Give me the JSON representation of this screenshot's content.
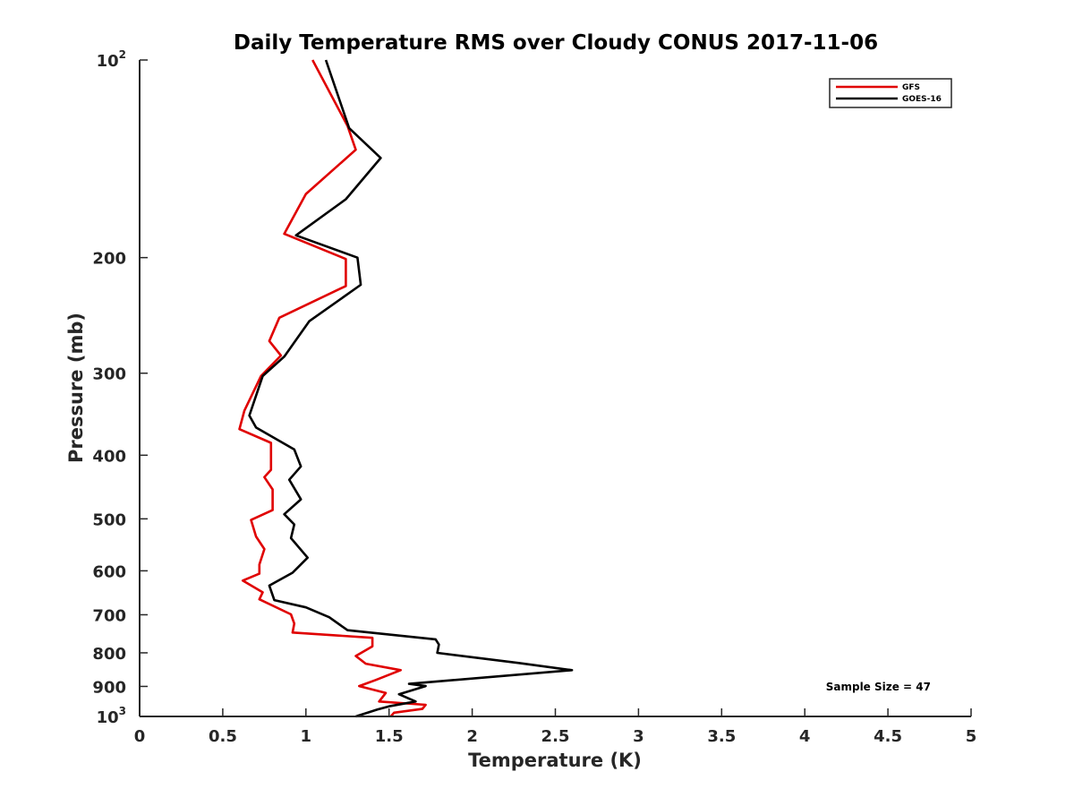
{
  "chart_data": {
    "type": "line",
    "title": "Daily Temperature RMS over Cloudy CONUS 2017-11-06",
    "xlabel": "Temperature (K)",
    "ylabel": "Pressure (mb)",
    "xlim": [
      0,
      5
    ],
    "ylim": [
      100,
      1000
    ],
    "y_scale": "log",
    "y_reversed": true,
    "grid": false,
    "legend_position": "top-right",
    "x_ticks": [
      "0",
      "0.5",
      "1",
      "1.5",
      "2",
      "2.5",
      "3",
      "3.5",
      "4",
      "4.5",
      "5"
    ],
    "y_ticks": [
      {
        "value": 100,
        "base": "10",
        "sup": "2"
      },
      {
        "value": 200,
        "base": "200",
        "sup": ""
      },
      {
        "value": 300,
        "base": "300",
        "sup": ""
      },
      {
        "value": 400,
        "base": "400",
        "sup": ""
      },
      {
        "value": 500,
        "base": "500",
        "sup": ""
      },
      {
        "value": 600,
        "base": "600",
        "sup": ""
      },
      {
        "value": 700,
        "base": "700",
        "sup": ""
      },
      {
        "value": 800,
        "base": "800",
        "sup": ""
      },
      {
        "value": 900,
        "base": "900",
        "sup": ""
      },
      {
        "value": 1000,
        "base": "10",
        "sup": "3"
      }
    ],
    "annotation": "Sample Size = 47",
    "series": [
      {
        "name": "GFS",
        "color": "#e00000",
        "points": [
          [
            1.04,
            100
          ],
          [
            1.25,
            126
          ],
          [
            1.3,
            137
          ],
          [
            1.0,
            160
          ],
          [
            0.87,
            184
          ],
          [
            1.24,
            201
          ],
          [
            1.24,
            221
          ],
          [
            0.84,
            247
          ],
          [
            0.78,
            268
          ],
          [
            0.85,
            282
          ],
          [
            0.73,
            303
          ],
          [
            0.63,
            342
          ],
          [
            0.6,
            365
          ],
          [
            0.79,
            383
          ],
          [
            0.79,
            421
          ],
          [
            0.75,
            432
          ],
          [
            0.8,
            451
          ],
          [
            0.8,
            485
          ],
          [
            0.67,
            502
          ],
          [
            0.7,
            532
          ],
          [
            0.75,
            556
          ],
          [
            0.72,
            587
          ],
          [
            0.72,
            606
          ],
          [
            0.62,
            621
          ],
          [
            0.74,
            647
          ],
          [
            0.72,
            663
          ],
          [
            0.91,
            699
          ],
          [
            0.93,
            722
          ],
          [
            0.92,
            745
          ],
          [
            1.4,
            759
          ],
          [
            1.4,
            782
          ],
          [
            1.3,
            809
          ],
          [
            1.36,
            831
          ],
          [
            1.57,
            850
          ],
          [
            1.42,
            880
          ],
          [
            1.32,
            899
          ],
          [
            1.48,
            921
          ],
          [
            1.44,
            949
          ],
          [
            1.72,
            960
          ],
          [
            1.7,
            974
          ],
          [
            1.53,
            987
          ],
          [
            1.51,
            1000
          ]
        ]
      },
      {
        "name": "GOES-16",
        "color": "#000000",
        "points": [
          [
            1.12,
            100
          ],
          [
            1.26,
            127
          ],
          [
            1.45,
            141
          ],
          [
            1.24,
            163
          ],
          [
            0.94,
            185
          ],
          [
            1.31,
            200
          ],
          [
            1.33,
            220
          ],
          [
            1.02,
            250
          ],
          [
            0.87,
            283
          ],
          [
            0.74,
            303
          ],
          [
            0.66,
            348
          ],
          [
            0.7,
            363
          ],
          [
            0.93,
            392
          ],
          [
            0.97,
            416
          ],
          [
            0.9,
            436
          ],
          [
            0.97,
            467
          ],
          [
            0.87,
            492
          ],
          [
            0.93,
            510
          ],
          [
            0.91,
            535
          ],
          [
            1.01,
            573
          ],
          [
            0.92,
            604
          ],
          [
            0.78,
            632
          ],
          [
            0.81,
            665
          ],
          [
            1.0,
            682
          ],
          [
            1.14,
            706
          ],
          [
            1.25,
            739
          ],
          [
            1.78,
            763
          ],
          [
            1.8,
            777
          ],
          [
            1.79,
            800
          ],
          [
            2.28,
            829
          ],
          [
            2.6,
            850
          ],
          [
            1.62,
            892
          ],
          [
            1.72,
            899
          ],
          [
            1.56,
            925
          ],
          [
            1.66,
            949
          ],
          [
            1.5,
            965
          ],
          [
            1.43,
            976
          ],
          [
            1.3,
            1000
          ]
        ]
      }
    ]
  }
}
